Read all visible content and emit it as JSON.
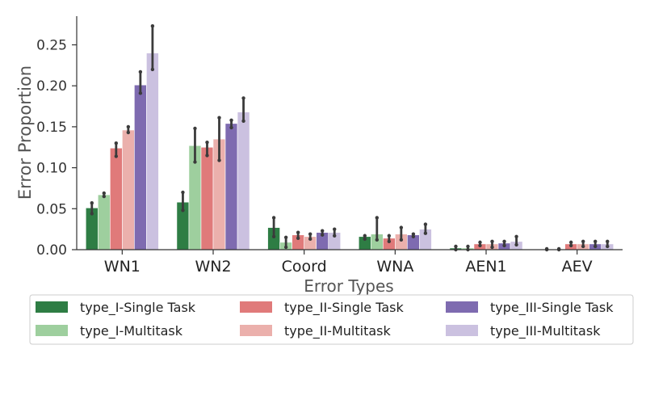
{
  "chart_data": {
    "type": "bar",
    "title": "",
    "xlabel": "Error Types",
    "ylabel": "Error Proportion",
    "ylim": [
      0,
      0.285
    ],
    "yticks": [
      0.0,
      0.05,
      0.1,
      0.15,
      0.2,
      0.25
    ],
    "ytick_labels": [
      "0.00",
      "0.05",
      "0.10",
      "0.15",
      "0.20",
      "0.25"
    ],
    "categories": [
      "WN1",
      "WN2",
      "Coord",
      "WNA",
      "AEN1",
      "AEV"
    ],
    "legend_position": "bottom",
    "series": [
      {
        "name": "type_I-Single Task",
        "color": "#2e7d44",
        "values": [
          0.051,
          0.058,
          0.027,
          0.016,
          0.002,
          0.0005
        ],
        "err_low": [
          0.044,
          0.048,
          0.016,
          0.013,
          0.0,
          0.0
        ],
        "err_high": [
          0.057,
          0.07,
          0.039,
          0.017,
          0.004,
          0.001
        ]
      },
      {
        "name": "type_I-Multitask",
        "color": "#9ecf9e",
        "values": [
          0.067,
          0.127,
          0.009,
          0.019,
          0.002,
          0.0005
        ],
        "err_low": [
          0.065,
          0.107,
          0.003,
          0.012,
          0.0,
          0.0
        ],
        "err_high": [
          0.069,
          0.148,
          0.015,
          0.039,
          0.004,
          0.001
        ]
      },
      {
        "name": "type_II-Single Task",
        "color": "#e07a7a",
        "values": [
          0.124,
          0.125,
          0.018,
          0.014,
          0.007,
          0.007
        ],
        "err_low": [
          0.114,
          0.115,
          0.014,
          0.01,
          0.005,
          0.005
        ],
        "err_high": [
          0.13,
          0.131,
          0.021,
          0.017,
          0.009,
          0.009
        ]
      },
      {
        "name": "type_II-Multitask",
        "color": "#ebb0ac",
        "values": [
          0.146,
          0.135,
          0.016,
          0.019,
          0.007,
          0.007
        ],
        "err_low": [
          0.143,
          0.109,
          0.013,
          0.012,
          0.003,
          0.004
        ],
        "err_high": [
          0.15,
          0.161,
          0.019,
          0.027,
          0.01,
          0.01
        ]
      },
      {
        "name": "type_III-Single Task",
        "color": "#7e6bb0",
        "values": [
          0.201,
          0.154,
          0.021,
          0.018,
          0.008,
          0.007
        ],
        "err_low": [
          0.191,
          0.149,
          0.018,
          0.016,
          0.005,
          0.004
        ],
        "err_high": [
          0.217,
          0.158,
          0.023,
          0.019,
          0.01,
          0.01
        ]
      },
      {
        "name": "type_III-Multitask",
        "color": "#cbc1e0",
        "values": [
          0.24,
          0.168,
          0.021,
          0.025,
          0.01,
          0.007
        ],
        "err_low": [
          0.22,
          0.157,
          0.017,
          0.02,
          0.006,
          0.004
        ],
        "err_high": [
          0.273,
          0.185,
          0.025,
          0.031,
          0.016,
          0.01
        ]
      }
    ]
  }
}
